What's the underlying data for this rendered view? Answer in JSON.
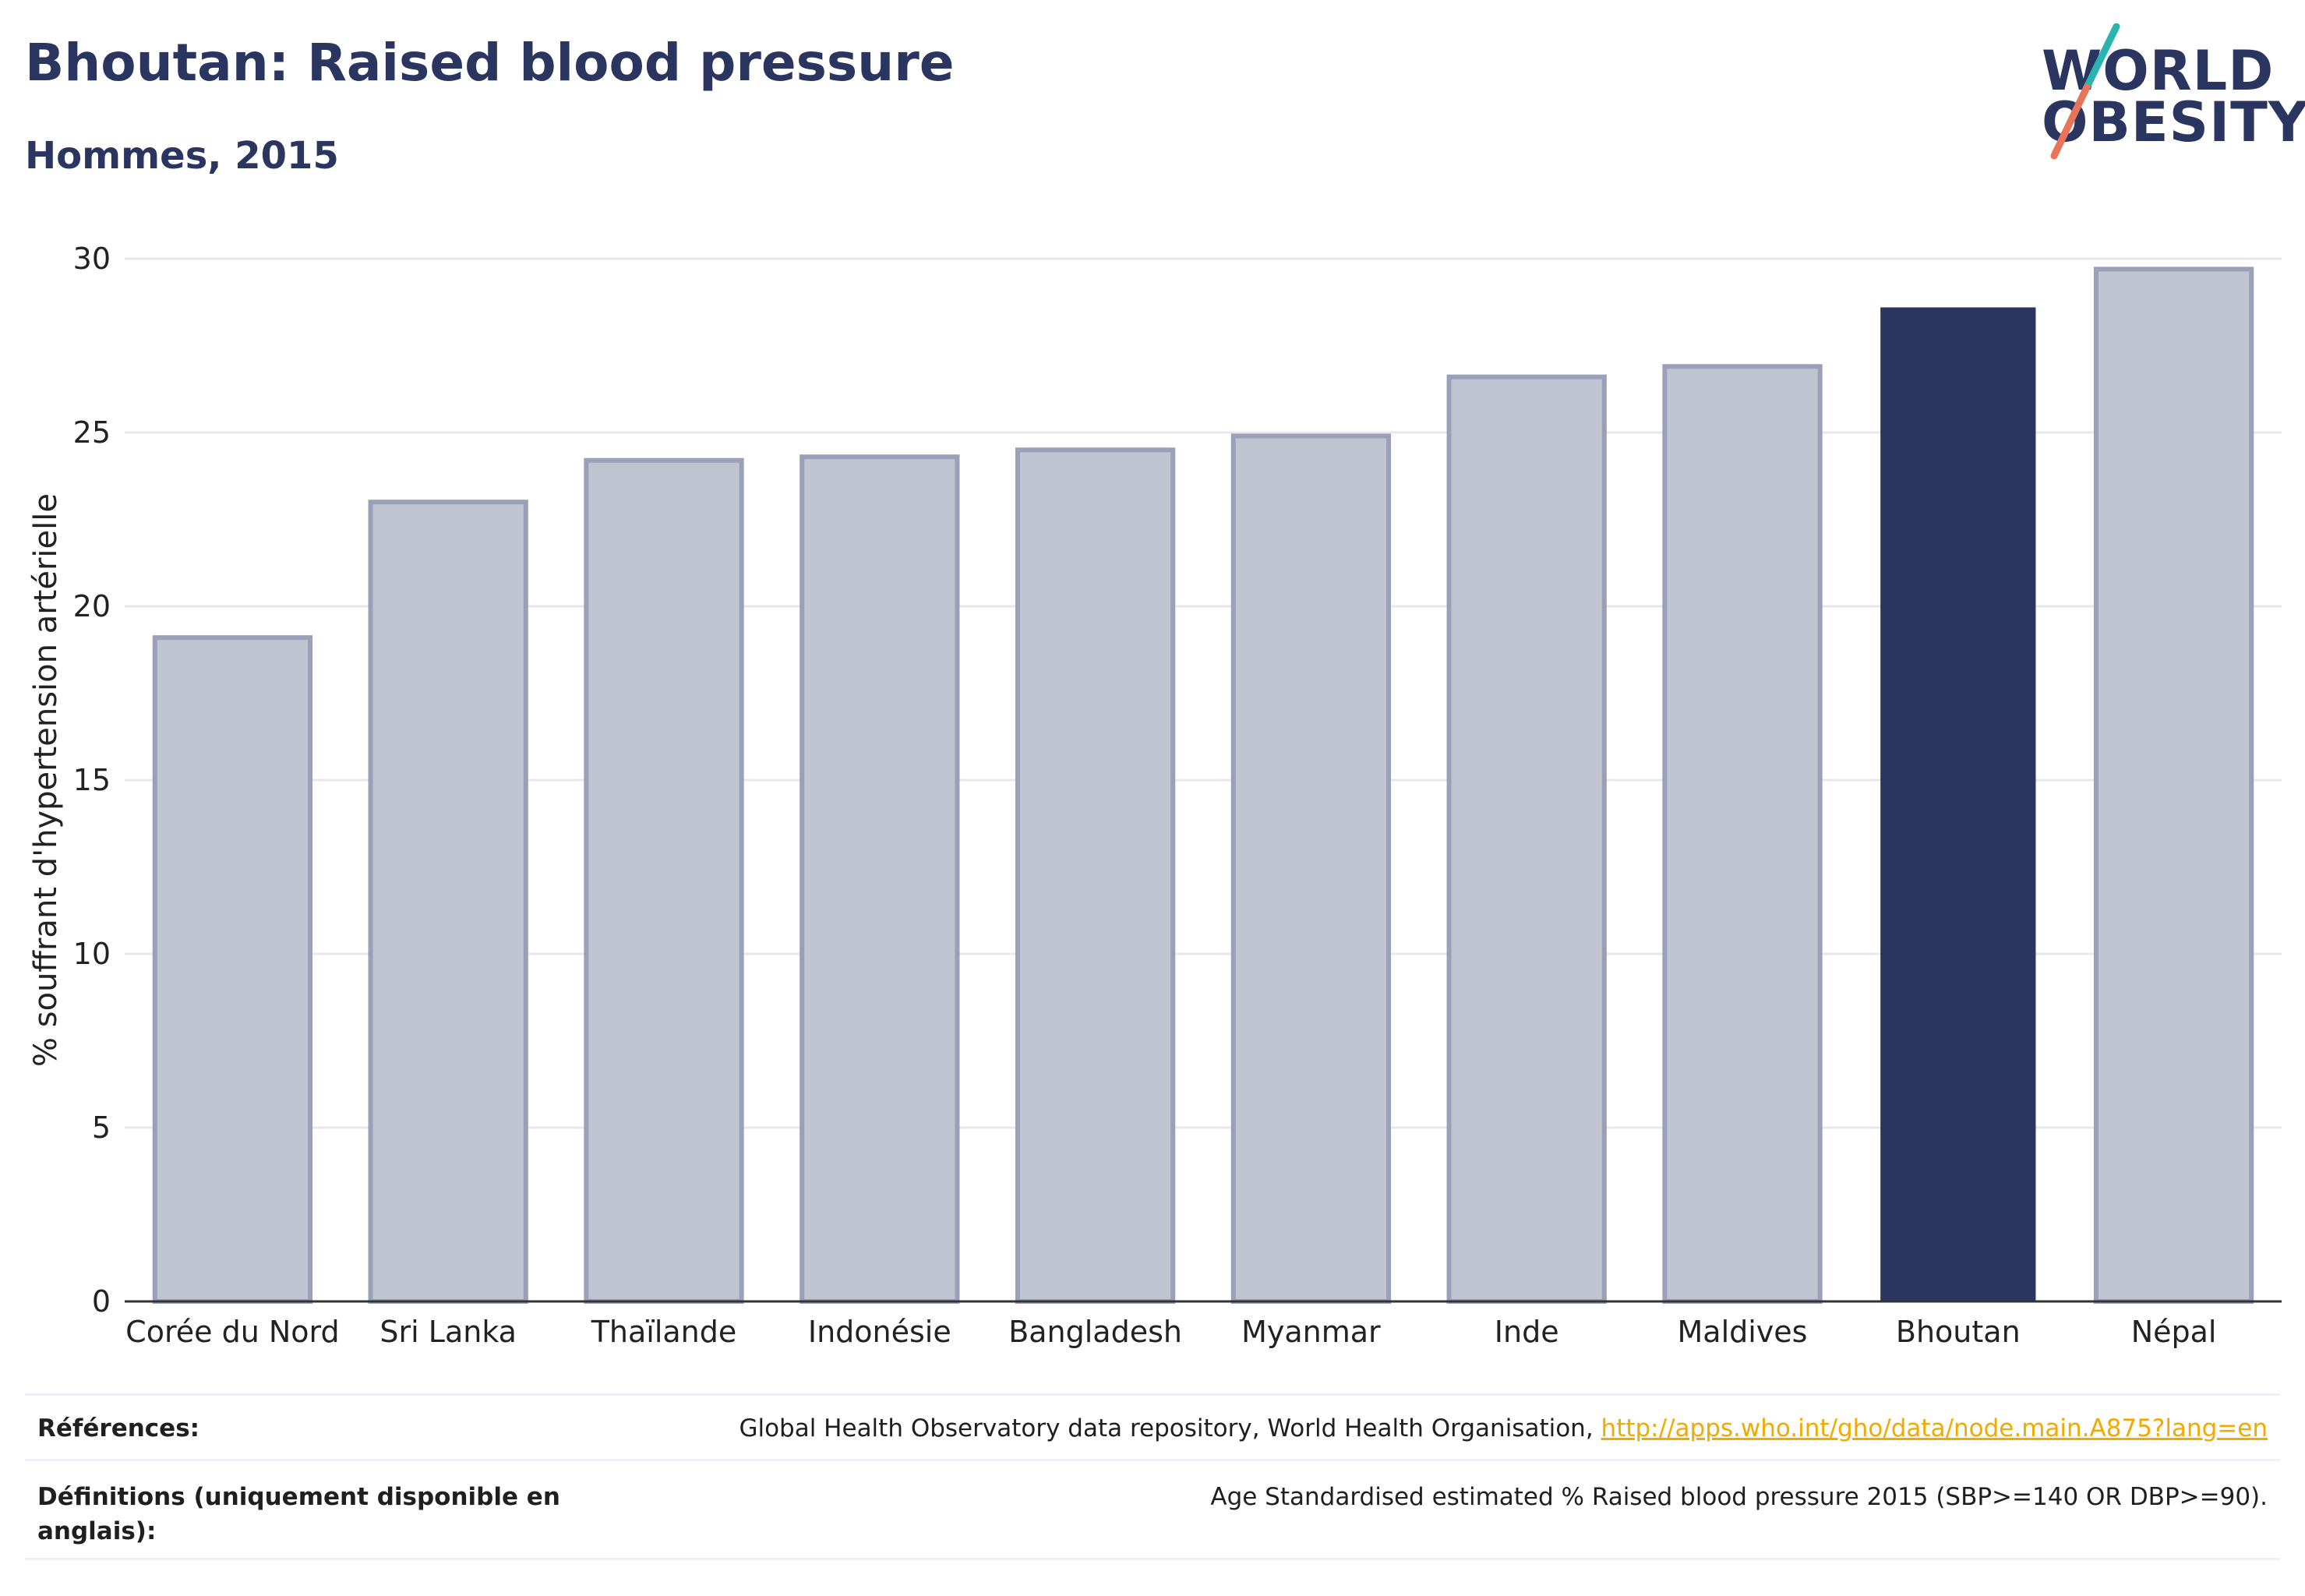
{
  "header": {
    "title": "Bhoutan: Raised blood pressure",
    "subtitle": "Hommes, 2015"
  },
  "logo": {
    "line1": "WORLD",
    "line2": "OBESITY",
    "accent_colors": [
      "#2bb3b1",
      "#e8755a"
    ]
  },
  "chart_data": {
    "type": "bar",
    "categories": [
      "Corée du Nord",
      "Sri Lanka",
      "Thaïlande",
      "Indonésie",
      "Bangladesh",
      "Myanmar",
      "Inde",
      "Maldives",
      "Bhoutan",
      "Népal"
    ],
    "values": [
      19.1,
      23.0,
      24.2,
      24.3,
      24.5,
      24.9,
      26.6,
      26.9,
      28.6,
      29.7
    ],
    "highlight": "Bhoutan",
    "title": "Bhoutan: Raised blood pressure",
    "subtitle": "Hommes, 2015",
    "xlabel": "",
    "ylabel": "% souffrant d'hypertension artérielle",
    "ylim": [
      0,
      30
    ],
    "yticks": [
      0,
      5,
      10,
      15,
      20,
      25,
      30
    ],
    "grid": true,
    "colors": {
      "bar": "#c0c3d0",
      "bar_border": "#9aa0b8",
      "highlight": "#2a3560",
      "grid": "#e6e8ee",
      "axis": "#333333"
    }
  },
  "footer": {
    "references_label": "Références:",
    "references_text": "Global Health Observatory data repository, World Health Organisation, ",
    "references_link": "http://apps.who.int/gho/data/node.main.A875?lang=en",
    "definitions_label": "Définitions (uniquement disponible en anglais):",
    "definitions_text": "Age Standardised estimated % Raised blood pressure 2015 (SBP>=140 OR DBP>=90)."
  }
}
